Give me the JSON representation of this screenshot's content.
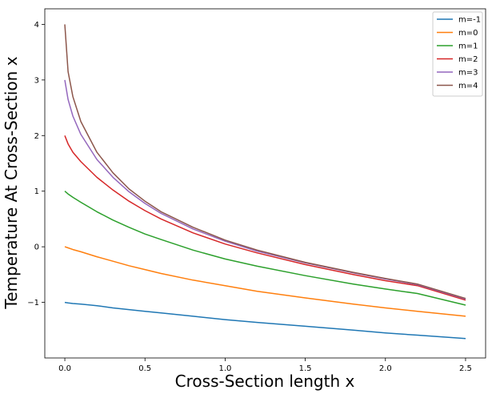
{
  "chart_data": {
    "type": "line",
    "xlabel": "Cross-Section length x",
    "ylabel": "Temperature At Cross-Section x",
    "xlim": [
      -0.125,
      2.625
    ],
    "ylim": [
      -2.0,
      4.28
    ],
    "xticks": [
      0.0,
      0.5,
      1.0,
      1.5,
      2.0,
      2.5
    ],
    "xtick_labels": [
      "0.0",
      "0.5",
      "1.0",
      "1.5",
      "2.0",
      "2.5"
    ],
    "yticks": [
      -1,
      0,
      1,
      2,
      3,
      4
    ],
    "ytick_labels": [
      "−1",
      "0",
      "1",
      "2",
      "3",
      "4"
    ],
    "grid": false,
    "legend": "top-right",
    "x": [
      0.0,
      0.02,
      0.05,
      0.1,
      0.2,
      0.3,
      0.4,
      0.5,
      0.6,
      0.8,
      1.0,
      1.2,
      1.5,
      1.8,
      2.0,
      2.2,
      2.5
    ],
    "series": [
      {
        "name": "m=-1",
        "color": "#1f77b4",
        "values": [
          -1.0,
          -1.01,
          -1.02,
          -1.03,
          -1.06,
          -1.1,
          -1.13,
          -1.16,
          -1.19,
          -1.25,
          -1.31,
          -1.36,
          -1.43,
          -1.5,
          -1.55,
          -1.59,
          -1.65
        ]
      },
      {
        "name": "m=0",
        "color": "#ff7f0e",
        "values": [
          0.0,
          -0.02,
          -0.05,
          -0.09,
          -0.18,
          -0.26,
          -0.34,
          -0.41,
          -0.48,
          -0.6,
          -0.7,
          -0.8,
          -0.92,
          -1.03,
          -1.1,
          -1.16,
          -1.25
        ]
      },
      {
        "name": "m=1",
        "color": "#2ca02c",
        "values": [
          1.0,
          0.95,
          0.89,
          0.8,
          0.63,
          0.48,
          0.35,
          0.23,
          0.13,
          -0.06,
          -0.22,
          -0.35,
          -0.52,
          -0.67,
          -0.76,
          -0.84,
          -1.05
        ]
      },
      {
        "name": "m=2",
        "color": "#d62728",
        "values": [
          2.0,
          1.85,
          1.7,
          1.53,
          1.25,
          1.02,
          0.82,
          0.65,
          0.5,
          0.25,
          0.05,
          -0.11,
          -0.32,
          -0.5,
          -0.61,
          -0.7,
          -0.96
        ]
      },
      {
        "name": "m=3",
        "color": "#9467bd",
        "values": [
          3.0,
          2.65,
          2.35,
          2.02,
          1.57,
          1.25,
          0.99,
          0.78,
          0.6,
          0.32,
          0.1,
          -0.08,
          -0.29,
          -0.47,
          -0.58,
          -0.68,
          -0.94
        ]
      },
      {
        "name": "m=4",
        "color": "#8c564b",
        "values": [
          4.0,
          3.15,
          2.7,
          2.25,
          1.7,
          1.33,
          1.04,
          0.82,
          0.63,
          0.35,
          0.12,
          -0.06,
          -0.28,
          -0.46,
          -0.57,
          -0.67,
          -0.93
        ]
      }
    ]
  }
}
